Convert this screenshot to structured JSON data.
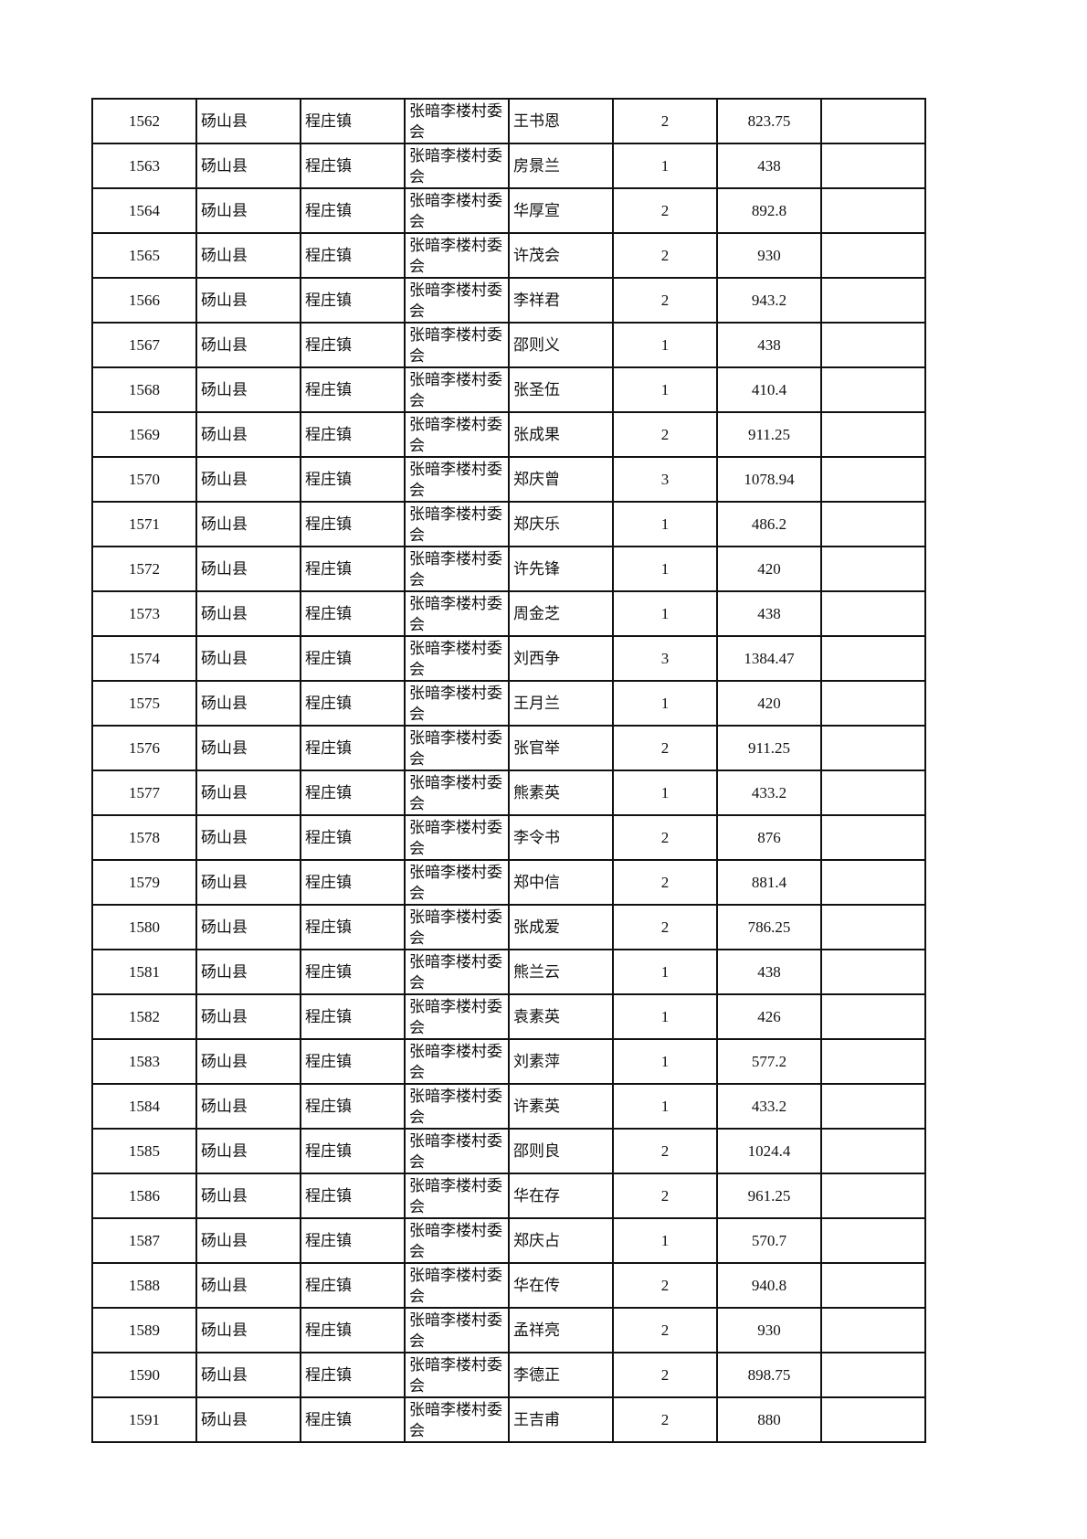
{
  "rows": [
    {
      "no": "1562",
      "county": "砀山县",
      "town": "程庄镇",
      "village": "张暗李楼村委会",
      "name": "王书恩",
      "count": "2",
      "amount": "823.75",
      "note": ""
    },
    {
      "no": "1563",
      "county": "砀山县",
      "town": "程庄镇",
      "village": "张暗李楼村委会",
      "name": "房景兰",
      "count": "1",
      "amount": "438",
      "note": ""
    },
    {
      "no": "1564",
      "county": "砀山县",
      "town": "程庄镇",
      "village": "张暗李楼村委会",
      "name": "华厚宣",
      "count": "2",
      "amount": "892.8",
      "note": ""
    },
    {
      "no": "1565",
      "county": "砀山县",
      "town": "程庄镇",
      "village": "张暗李楼村委会",
      "name": "许茂会",
      "count": "2",
      "amount": "930",
      "note": ""
    },
    {
      "no": "1566",
      "county": "砀山县",
      "town": "程庄镇",
      "village": "张暗李楼村委会",
      "name": "李祥君",
      "count": "2",
      "amount": "943.2",
      "note": ""
    },
    {
      "no": "1567",
      "county": "砀山县",
      "town": "程庄镇",
      "village": "张暗李楼村委会",
      "name": "邵则义",
      "count": "1",
      "amount": "438",
      "note": ""
    },
    {
      "no": "1568",
      "county": "砀山县",
      "town": "程庄镇",
      "village": "张暗李楼村委会",
      "name": "张圣伍",
      "count": "1",
      "amount": "410.4",
      "note": ""
    },
    {
      "no": "1569",
      "county": "砀山县",
      "town": "程庄镇",
      "village": "张暗李楼村委会",
      "name": "张成果",
      "count": "2",
      "amount": "911.25",
      "note": ""
    },
    {
      "no": "1570",
      "county": "砀山县",
      "town": "程庄镇",
      "village": "张暗李楼村委会",
      "name": "郑庆曾",
      "count": "3",
      "amount": "1078.94",
      "note": ""
    },
    {
      "no": "1571",
      "county": "砀山县",
      "town": "程庄镇",
      "village": "张暗李楼村委会",
      "name": "郑庆乐",
      "count": "1",
      "amount": "486.2",
      "note": ""
    },
    {
      "no": "1572",
      "county": "砀山县",
      "town": "程庄镇",
      "village": "张暗李楼村委会",
      "name": "许先锋",
      "count": "1",
      "amount": "420",
      "note": ""
    },
    {
      "no": "1573",
      "county": "砀山县",
      "town": "程庄镇",
      "village": "张暗李楼村委会",
      "name": "周金芝",
      "count": "1",
      "amount": "438",
      "note": ""
    },
    {
      "no": "1574",
      "county": "砀山县",
      "town": "程庄镇",
      "village": "张暗李楼村委会",
      "name": "刘西争",
      "count": "3",
      "amount": "1384.47",
      "note": ""
    },
    {
      "no": "1575",
      "county": "砀山县",
      "town": "程庄镇",
      "village": "张暗李楼村委会",
      "name": "王月兰",
      "count": "1",
      "amount": "420",
      "note": ""
    },
    {
      "no": "1576",
      "county": "砀山县",
      "town": "程庄镇",
      "village": "张暗李楼村委会",
      "name": "张官举",
      "count": "2",
      "amount": "911.25",
      "note": ""
    },
    {
      "no": "1577",
      "county": "砀山县",
      "town": "程庄镇",
      "village": "张暗李楼村委会",
      "name": "熊素英",
      "count": "1",
      "amount": "433.2",
      "note": ""
    },
    {
      "no": "1578",
      "county": "砀山县",
      "town": "程庄镇",
      "village": "张暗李楼村委会",
      "name": "李令书",
      "count": "2",
      "amount": "876",
      "note": ""
    },
    {
      "no": "1579",
      "county": "砀山县",
      "town": "程庄镇",
      "village": "张暗李楼村委会",
      "name": "郑中信",
      "count": "2",
      "amount": "881.4",
      "note": ""
    },
    {
      "no": "1580",
      "county": "砀山县",
      "town": "程庄镇",
      "village": "张暗李楼村委会",
      "name": "张成爱",
      "count": "2",
      "amount": "786.25",
      "note": ""
    },
    {
      "no": "1581",
      "county": "砀山县",
      "town": "程庄镇",
      "village": "张暗李楼村委会",
      "name": "熊兰云",
      "count": "1",
      "amount": "438",
      "note": ""
    },
    {
      "no": "1582",
      "county": "砀山县",
      "town": "程庄镇",
      "village": "张暗李楼村委会",
      "name": "袁素英",
      "count": "1",
      "amount": "426",
      "note": ""
    },
    {
      "no": "1583",
      "county": "砀山县",
      "town": "程庄镇",
      "village": "张暗李楼村委会",
      "name": "刘素萍",
      "count": "1",
      "amount": "577.2",
      "note": ""
    },
    {
      "no": "1584",
      "county": "砀山县",
      "town": "程庄镇",
      "village": "张暗李楼村委会",
      "name": "许素英",
      "count": "1",
      "amount": "433.2",
      "note": ""
    },
    {
      "no": "1585",
      "county": "砀山县",
      "town": "程庄镇",
      "village": "张暗李楼村委会",
      "name": "邵则良",
      "count": "2",
      "amount": "1024.4",
      "note": ""
    },
    {
      "no": "1586",
      "county": "砀山县",
      "town": "程庄镇",
      "village": "张暗李楼村委会",
      "name": "华在存",
      "count": "2",
      "amount": "961.25",
      "note": ""
    },
    {
      "no": "1587",
      "county": "砀山县",
      "town": "程庄镇",
      "village": "张暗李楼村委会",
      "name": "郑庆占",
      "count": "1",
      "amount": "570.7",
      "note": ""
    },
    {
      "no": "1588",
      "county": "砀山县",
      "town": "程庄镇",
      "village": "张暗李楼村委会",
      "name": "华在传",
      "count": "2",
      "amount": "940.8",
      "note": ""
    },
    {
      "no": "1589",
      "county": "砀山县",
      "town": "程庄镇",
      "village": "张暗李楼村委会",
      "name": "孟祥亮",
      "count": "2",
      "amount": "930",
      "note": ""
    },
    {
      "no": "1590",
      "county": "砀山县",
      "town": "程庄镇",
      "village": "张暗李楼村委会",
      "name": "李德正",
      "count": "2",
      "amount": "898.75",
      "note": ""
    },
    {
      "no": "1591",
      "county": "砀山县",
      "town": "程庄镇",
      "village": "张暗李楼村委会",
      "name": "王吉甫",
      "count": "2",
      "amount": "880",
      "note": ""
    }
  ]
}
